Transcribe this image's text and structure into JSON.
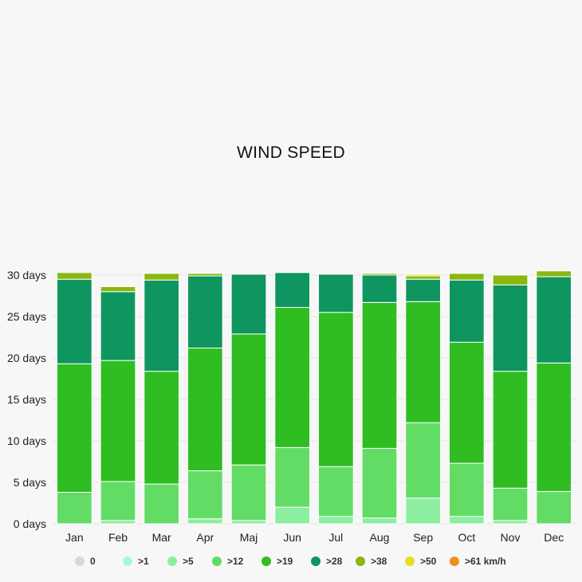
{
  "chart_data": {
    "type": "bar",
    "stacked": true,
    "title": "WIND SPEED",
    "xlabel": "",
    "ylabel": "",
    "ylim": [
      0,
      30
    ],
    "y_unit": "days",
    "yticks": [
      0,
      5,
      10,
      15,
      20,
      25,
      30
    ],
    "ytick_labels": [
      "0 days",
      "5 days",
      "10 days",
      "15 days",
      "20 days",
      "25 days",
      "30 days"
    ],
    "grid": true,
    "legend_placement": "bottom",
    "categories": [
      "Jan",
      "Feb",
      "Mar",
      "Apr",
      "Maj",
      "Jun",
      "Jul",
      "Aug",
      "Sep",
      "Oct",
      "Nov",
      "Dec"
    ],
    "series": [
      {
        "name": "0",
        "color": "#d8d8d8",
        "values": [
          0,
          0,
          0,
          0,
          0,
          0,
          0,
          0,
          0,
          0,
          0,
          0
        ]
      },
      {
        "name": ">1",
        "color": "#aaf5d2",
        "values": [
          0,
          0,
          0,
          0,
          0,
          0,
          0,
          0,
          0,
          0,
          0,
          0
        ]
      },
      {
        "name": ">5",
        "color": "#8bef9f",
        "values": [
          0,
          0.4,
          0,
          0.6,
          0.4,
          2.0,
          0.9,
          0.7,
          3.1,
          0.9,
          0.4,
          0
        ]
      },
      {
        "name": ">12",
        "color": "#62dc65",
        "values": [
          3.8,
          4.7,
          4.8,
          5.8,
          6.7,
          7.2,
          6.0,
          8.4,
          9.1,
          6.4,
          3.9,
          3.9
        ]
      },
      {
        "name": ">19",
        "color": "#2fbd21",
        "values": [
          15.5,
          14.6,
          13.6,
          14.8,
          15.8,
          16.9,
          18.6,
          17.6,
          14.6,
          14.6,
          14.1,
          15.5
        ]
      },
      {
        "name": ">28",
        "color": "#0f9560",
        "values": [
          10.2,
          8.3,
          11.0,
          8.7,
          7.2,
          4.2,
          4.6,
          3.3,
          2.7,
          7.5,
          10.4,
          10.4
        ]
      },
      {
        "name": ">38",
        "color": "#8ab710",
        "values": [
          0.8,
          0.6,
          0.8,
          0.3,
          0,
          0,
          0,
          0.2,
          0.4,
          0.8,
          1.2,
          0.7
        ]
      },
      {
        "name": ">50",
        "color": "#e3e021",
        "values": [
          0,
          0,
          0,
          0,
          0,
          0,
          0,
          0,
          0.2,
          0,
          0,
          0
        ]
      },
      {
        "name": ">61 km/h",
        "color": "#ec921a",
        "values": [
          0,
          0,
          0,
          0,
          0,
          0,
          0,
          0,
          0,
          0,
          0,
          0
        ]
      }
    ]
  }
}
